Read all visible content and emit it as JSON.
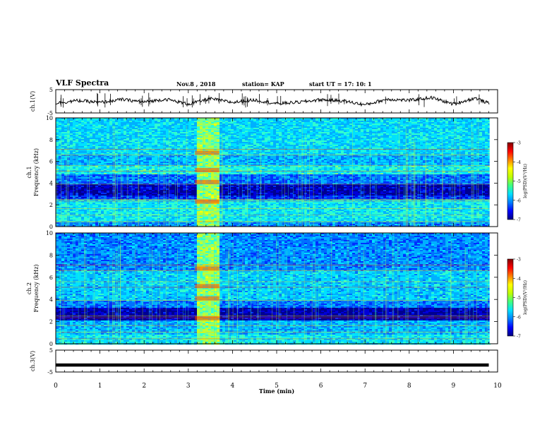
{
  "header": {
    "title": "VLF Spectra",
    "date": "Nov.8 , 2018",
    "station": "station= KAP",
    "start_ut": "start  UT  =   17: 10: 1"
  },
  "colorbar": {
    "ticks": [
      "-3",
      "-4",
      "-5",
      "-6",
      "-7"
    ],
    "label": "log(PSD)(V²/Hz)",
    "colors": [
      "#000080",
      "#0000ff",
      "#0080ff",
      "#00e0ff",
      "#40ff80",
      "#c0ff00",
      "#ffff00",
      "#ff8000",
      "#ff0000",
      "#800000"
    ]
  },
  "chart_data": [
    {
      "id": "ch1-waveform",
      "type": "line",
      "ylabel": "ch.1(V)",
      "ylim": [
        -5,
        5
      ],
      "yticks": [
        "5",
        "-5"
      ],
      "xlim": [
        0,
        10
      ],
      "series": [
        {
          "x": [
            0,
            0.5,
            1,
            1.5,
            2,
            2.5,
            3,
            3.5,
            4,
            4.5,
            5,
            5.5,
            6,
            6.5,
            7,
            7.5,
            8,
            8.5,
            9,
            9.5,
            9.8
          ],
          "values": [
            -0.8,
            0.3,
            -0.5,
            0.8,
            -0.3,
            0.9,
            -1.2,
            1.1,
            -0.5,
            0.6,
            -1.0,
            -0.4,
            0.7,
            0.2,
            -1.5,
            0.9,
            0.4,
            1.6,
            -1.2,
            1.4,
            -0.9
          ]
        }
      ]
    },
    {
      "id": "ch1-spectrogram",
      "type": "heatmap",
      "ylabel": "ch.1\nFrequency (kHz)",
      "ylim": [
        0,
        10
      ],
      "yticks": [
        "0",
        "2",
        "4",
        "6",
        "8",
        "10"
      ],
      "xlim": [
        0,
        10
      ],
      "colorbar_range": [
        -7,
        -3
      ],
      "burst_minutes": [
        3.15,
        3.7
      ]
    },
    {
      "id": "ch2-spectrogram",
      "type": "heatmap",
      "ylabel": "ch.2\nFrequency (kHz)",
      "ylim": [
        0,
        10
      ],
      "yticks": [
        "0",
        "2",
        "4",
        "6",
        "8",
        "10"
      ],
      "xlim": [
        0,
        10
      ],
      "colorbar_range": [
        -7,
        -3
      ],
      "burst_minutes": [
        3.15,
        3.7
      ]
    },
    {
      "id": "ch3-waveform",
      "type": "line",
      "ylabel": "ch.3(V)",
      "ylim": [
        -5,
        5
      ],
      "yticks": [
        "5",
        "-5"
      ],
      "xlim": [
        0,
        10
      ],
      "xlabel": "Time  (min)",
      "xticks": [
        "0",
        "1",
        "2",
        "3",
        "4",
        "5",
        "6",
        "7",
        "8",
        "9",
        "10"
      ],
      "series": [
        {
          "x": [
            0,
            9.8
          ],
          "values": [
            -1.8,
            -1.8
          ]
        }
      ]
    }
  ]
}
